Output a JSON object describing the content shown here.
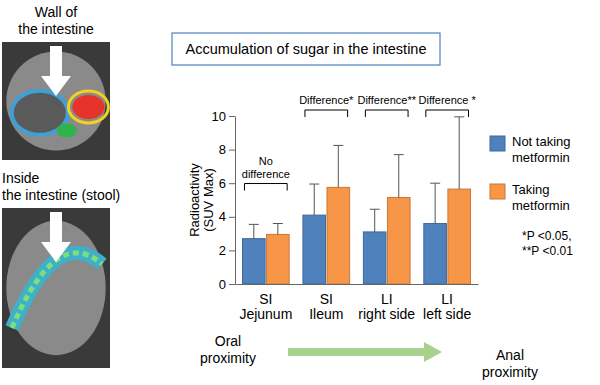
{
  "chart_data": {
    "type": "bar",
    "title": "Accumulation of sugar in the intestine",
    "y_label": "Radioactivity (SUV Max)",
    "categories": [
      "SI Jejunum",
      "SI Ileum",
      "LI right side",
      "LI left side"
    ],
    "series": [
      {
        "name": "Not taking metformin",
        "color": "#4f81bd",
        "values": [
          2.7,
          4.1,
          3.1,
          3.6
        ],
        "error": [
          0.85,
          1.85,
          1.35,
          2.4
        ]
      },
      {
        "name": "Taking metformin",
        "color": "#f79646",
        "values": [
          2.95,
          5.75,
          5.15,
          5.65
        ],
        "error": [
          0.65,
          2.5,
          2.55,
          4.3
        ]
      }
    ],
    "significance": [
      "No difference",
      "Difference*",
      "Difference**",
      "Difference *"
    ],
    "footnote": [
      "*P <0.05,",
      "**P <0.01"
    ],
    "x_direction": {
      "start": [
        "Oral",
        "proximity"
      ],
      "end": [
        "Anal",
        "proximity"
      ]
    },
    "image_captions": [
      [
        "Wall of",
        "the intestine"
      ],
      [
        "Inside",
        "the intestine (stool)"
      ]
    ],
    "ylim": [
      0,
      10
    ],
    "yticks": [
      0,
      2,
      4,
      6,
      8,
      10
    ],
    "grid": false,
    "legend": "right"
  }
}
